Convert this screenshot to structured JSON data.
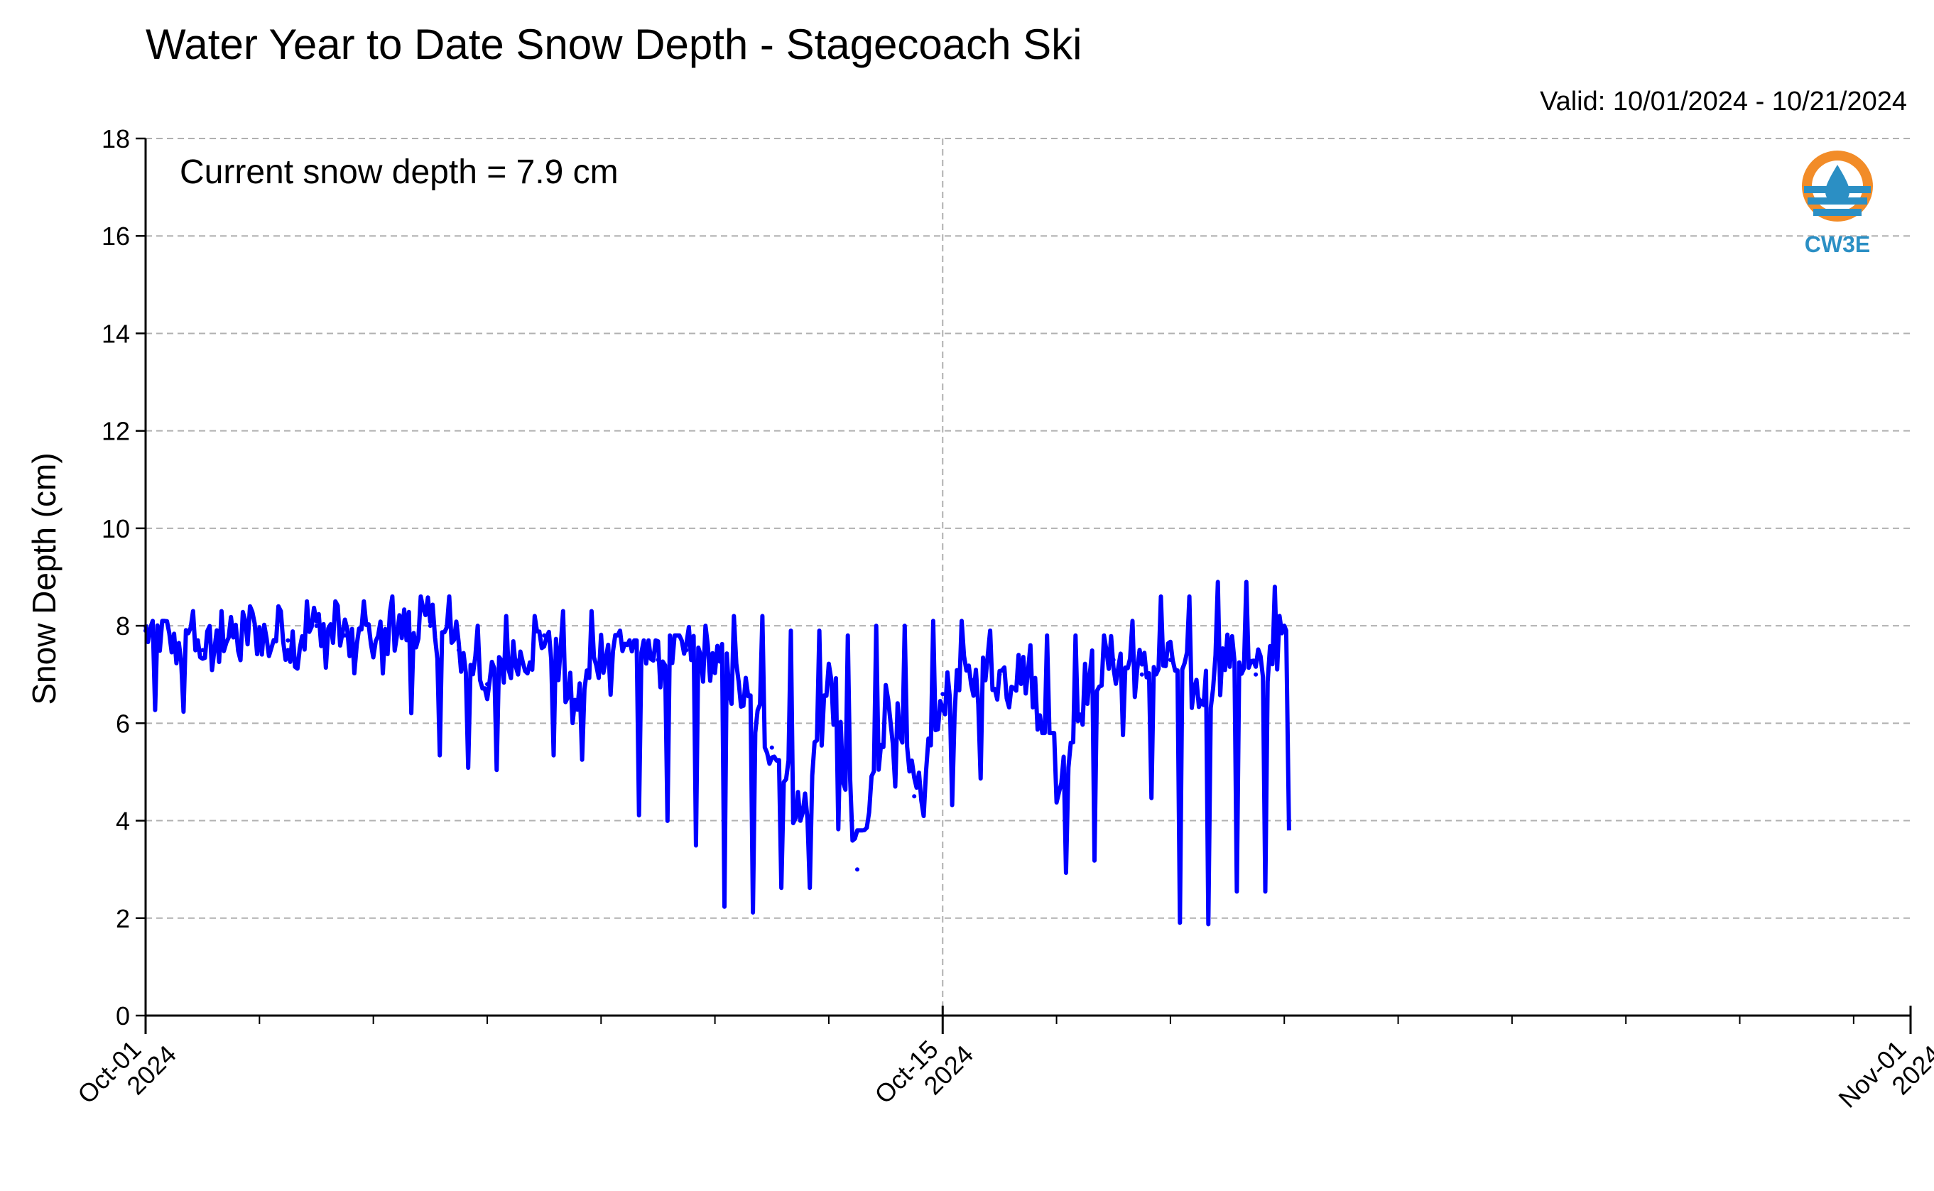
{
  "valid_label": "Valid: 10/01/2024 - 10/21/2024",
  "logo": {
    "text": "CW3E",
    "icon": "water-drop-sun-icon",
    "colors": [
      "#f28c28",
      "#2b8fc4"
    ]
  },
  "colors": {
    "series": "#0000ff",
    "grid": "#b0b0b0"
  },
  "chart_data": {
    "type": "line",
    "title": "Water Year to Date Snow Depth - Stagecoach Ski",
    "ylabel": "Snow Depth (cm)",
    "xlabel": "",
    "ylim": [
      0,
      18
    ],
    "yticks": [
      0,
      2,
      4,
      6,
      8,
      10,
      12,
      14,
      16,
      18
    ],
    "xlim": [
      "2024-10-01",
      "2024-11-01"
    ],
    "xticks": [
      {
        "date": "2024-10-01",
        "label_line1": "Oct-01",
        "label_line2": "2024"
      },
      {
        "date": "2024-10-15",
        "label_line1": "Oct-15",
        "label_line2": "2024"
      },
      {
        "date": "2024-11-01",
        "label_line1": "Nov-01",
        "label_line2": "2024"
      }
    ],
    "grid": true,
    "annotation": "Current snow depth = 7.9 cm",
    "series": [
      {
        "x": [
          "2024-10-01 00:00",
          "2024-10-01 12:00",
          "2024-10-02 00:00",
          "2024-10-02 12:00",
          "2024-10-03 00:00",
          "2024-10-03 12:00",
          "2024-10-04 00:00",
          "2024-10-04 12:00",
          "2024-10-05 00:00",
          "2024-10-05 12:00",
          "2024-10-06 00:00",
          "2024-10-06 12:00",
          "2024-10-07 00:00",
          "2024-10-07 12:00",
          "2024-10-08 00:00",
          "2024-10-08 12:00",
          "2024-10-09 00:00",
          "2024-10-09 12:00",
          "2024-10-10 00:00",
          "2024-10-10 12:00",
          "2024-10-11 00:00",
          "2024-10-11 12:00",
          "2024-10-12 00:00",
          "2024-10-12 12:00",
          "2024-10-13 00:00",
          "2024-10-13 12:00",
          "2024-10-14 00:00",
          "2024-10-14 12:00",
          "2024-10-15 00:00",
          "2024-10-15 12:00",
          "2024-10-16 00:00",
          "2024-10-16 12:00",
          "2024-10-17 00:00",
          "2024-10-17 12:00",
          "2024-10-18 00:00",
          "2024-10-18 12:00",
          "2024-10-19 00:00",
          "2024-10-19 12:00",
          "2024-10-20 00:00",
          "2024-10-20 12:00",
          "2024-10-21 00:00"
        ],
        "y": [
          7.9,
          7.6,
          7.5,
          7.8,
          7.9,
          7.7,
          8.0,
          7.8,
          7.6,
          7.9,
          8.0,
          7.5,
          6.8,
          7.3,
          7.8,
          6.2,
          7.6,
          7.7,
          7.3,
          7.5,
          7.2,
          6.5,
          5.5,
          4.0,
          7.0,
          3.0,
          6.5,
          4.5,
          6.6,
          6.9,
          7.0,
          7.1,
          4.6,
          6.9,
          7.3,
          7.0,
          7.3,
          6.5,
          7.5,
          7.0,
          8.0
        ],
        "min": [
          7.4,
          6.0,
          7.0,
          7.2,
          7.3,
          7.4,
          7.0,
          7.1,
          6.9,
          7.2,
          5.9,
          4.9,
          4.7,
          7.1,
          7.0,
          5.0,
          6.4,
          6.6,
          3.5,
          3.4,
          2.8,
          1.4,
          2.9,
          2.2,
          3.5,
          3.8,
          6.0,
          4.5,
          3.9,
          4.5,
          6.3,
          6.2,
          5.8,
          2.5,
          6.0,
          5.5,
          4.0,
          1.0,
          3.2,
          1.7,
          7.3
        ],
        "max": [
          8.1,
          8.1,
          8.3,
          8.2,
          8.4,
          8.3,
          8.5,
          8.5,
          8.1,
          8.6,
          8.6,
          8.0,
          7.8,
          8.2,
          8.0,
          8.3,
          7.9,
          7.7,
          7.2,
          7.8,
          8.0,
          8.2,
          7.6,
          7.9,
          7.8,
          7.7,
          8.0,
          7.4,
          8.1,
          7.9,
          7.2,
          7.4,
          7.8,
          7.5,
          7.8,
          8.1,
          8.6,
          8.6,
          8.9,
          8.6,
          8.8
        ],
        "end": {
          "x": "2024-10-21 02:00",
          "y": 7.9,
          "drop_min": 3.8
        }
      }
    ]
  }
}
